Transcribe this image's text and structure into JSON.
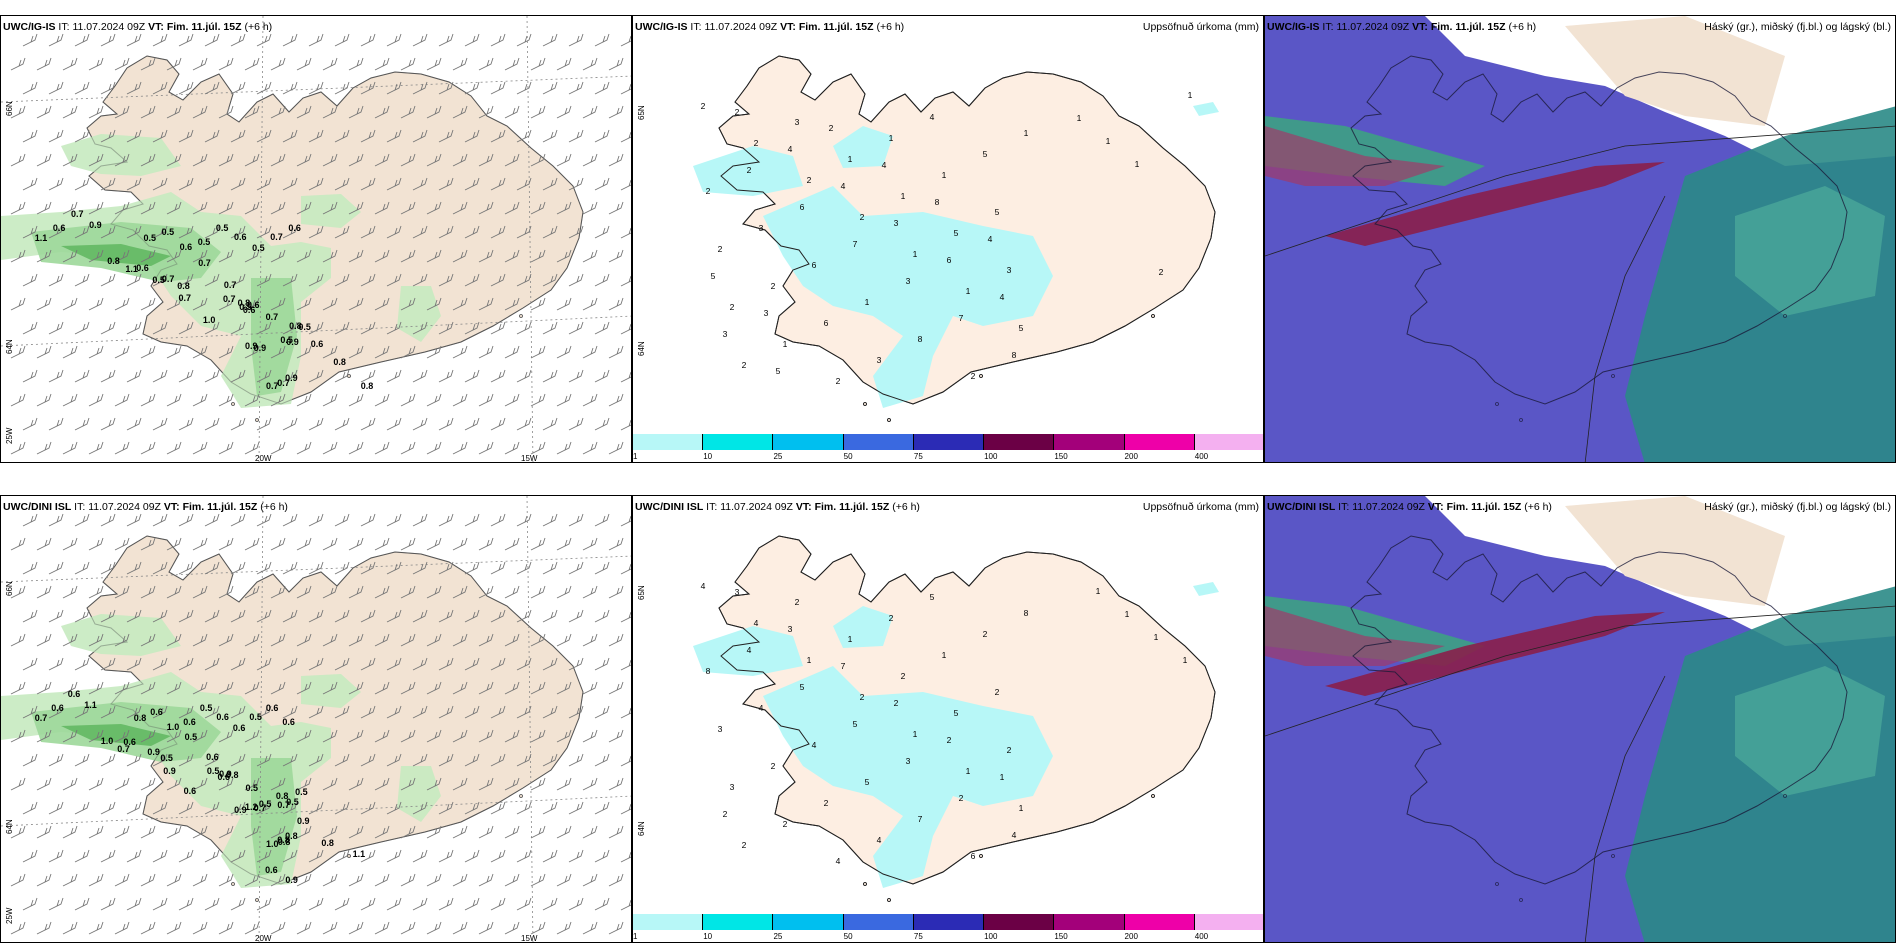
{
  "panels": [
    {
      "model": "UWC/IG-IS",
      "it_label": "IT:",
      "it_value": "11.07.2024 09Z",
      "vt_label": "VT:",
      "vt_value": "Fim. 11.júl. 15Z",
      "lead": "(+6 h)",
      "type": "wind",
      "lat_labels": [
        "66N",
        "64N",
        "25W"
      ],
      "lon_labels": [
        "20W",
        "15W"
      ],
      "markers": [
        "1.1",
        "0.6",
        "0.7",
        "0.9",
        "0.8",
        "1.1",
        "0.5",
        "0.5",
        "0.6",
        "0.5",
        "0.5",
        "0.6",
        "0.5",
        "0.7",
        "0.6",
        "0.5",
        "0.6",
        "0.7",
        "0.7",
        "0.7",
        "0.7",
        "0.8",
        "0.7",
        "0.8",
        "1.0",
        "0.7",
        "0.6",
        "0.5",
        "0.5",
        "0.6",
        "0.8",
        "0.5",
        "0.9",
        "0.6",
        "0.9",
        "0.9",
        "0.8",
        "0.9",
        "0.7",
        "0.8",
        "0.7"
      ]
    },
    {
      "model": "UWC/IG-IS",
      "it_label": "IT:",
      "it_value": "11.07.2024 09Z",
      "vt_label": "VT:",
      "vt_value": "Fim. 11.júl. 15Z",
      "lead": "(+6 h)",
      "right_title": "Uppsöfnuð úrkoma (mm)",
      "type": "precip",
      "lat_labels": [
        "65N",
        "64N"
      ],
      "markers": [
        "2",
        "2",
        "2",
        "2",
        "1",
        "1",
        "5",
        "2",
        "3",
        "1",
        "1",
        "5",
        "3",
        "2",
        "1",
        "2",
        "1",
        "1",
        "5",
        "2",
        "2",
        "6",
        "3",
        "4",
        "5",
        "2",
        "3",
        "6",
        "1",
        "8",
        "2",
        "1",
        "2",
        "6",
        "7",
        "3",
        "7",
        "8",
        "2",
        "4",
        "4",
        "3",
        "6",
        "4",
        "3",
        "5",
        "2",
        "4",
        "8",
        "4",
        "5",
        "3",
        "2",
        "1",
        "1",
        "1",
        "1"
      ]
    },
    {
      "model": "UWC/IG-IS",
      "it_label": "IT:",
      "it_value": "11.07.2024 09Z",
      "vt_label": "VT:",
      "vt_value": "Fim. 11.júl. 15Z",
      "lead": "(+6 h)",
      "right_title": "Háský (gr.), miðský (fj.bl.) og lágský (bl.)",
      "type": "cloud"
    },
    {
      "model": "UWC/DINI ISL",
      "it_label": "IT:",
      "it_value": "11.07.2024 09Z",
      "vt_label": "VT:",
      "vt_value": "Fim. 11.júl. 15Z",
      "lead": "(+6 h)",
      "type": "wind",
      "lat_labels": [
        "66N",
        "64N",
        "25W"
      ],
      "lon_labels": [
        "20W",
        "15W"
      ],
      "markers": [
        "0.7",
        "0.6",
        "0.6",
        "1.1",
        "1.0",
        "0.7",
        "0.8",
        "0.6",
        "1.0",
        "0.6",
        "0.5",
        "0.6",
        "0.6",
        "0.5",
        "0.6",
        "0.6",
        "0.6",
        "0.5",
        "0.9",
        "0.9",
        "0.5",
        "0.5",
        "0.6",
        "0.9",
        "0.6",
        "0.5",
        "0.8",
        "0.6",
        "0.8",
        "0.9",
        "0.5",
        "0.5",
        "1.2",
        "0.7",
        "0.5",
        "0.7",
        "0.9",
        "0.8",
        "1.0",
        "0.8",
        "0.8",
        "0.8",
        "1.1",
        "0.6",
        "0.9"
      ]
    },
    {
      "model": "UWC/DINI ISL",
      "it_label": "IT:",
      "it_value": "11.07.2024 09Z",
      "vt_label": "VT:",
      "vt_value": "Fim. 11.júl. 15Z",
      "lead": "(+6 h)",
      "right_title": "Uppsöfnuð úrkoma (mm)",
      "type": "precip",
      "lat_labels": [
        "65N",
        "64N"
      ],
      "markers": [
        "4",
        "4",
        "1",
        "2",
        "1",
        "1",
        "1",
        "2",
        "2",
        "1",
        "2",
        "5",
        "2",
        "3",
        "2",
        "4",
        "2",
        "1",
        "2",
        "3",
        "2",
        "2",
        "4",
        "5",
        "2",
        "8",
        "4",
        "4",
        "5",
        "7",
        "6",
        "8",
        "4",
        "5",
        "5",
        "3",
        "2",
        "4",
        "3",
        "3",
        "7",
        "2",
        "2",
        "1",
        "2",
        "1",
        "1",
        "1",
        "1"
      ]
    },
    {
      "model": "UWC/DINI ISL",
      "it_label": "IT:",
      "it_value": "11.07.2024 09Z",
      "vt_label": "VT:",
      "vt_value": "Fim. 11.júl. 15Z",
      "lead": "(+6 h)",
      "right_title": "Háský (gr.), miðský (fj.bl.) og lágský (bl.)",
      "type": "cloud"
    }
  ],
  "colorbar": {
    "ticks": [
      "1",
      "10",
      "25",
      "50",
      "75",
      "100",
      "150",
      "200",
      "400"
    ],
    "colors": [
      "#b7f7f7",
      "#00e6e6",
      "#00bfef",
      "#3a69e0",
      "#2b2bb5",
      "#6b0045",
      "#a3007a",
      "#ee00a8",
      "#f4b0f0"
    ]
  }
}
